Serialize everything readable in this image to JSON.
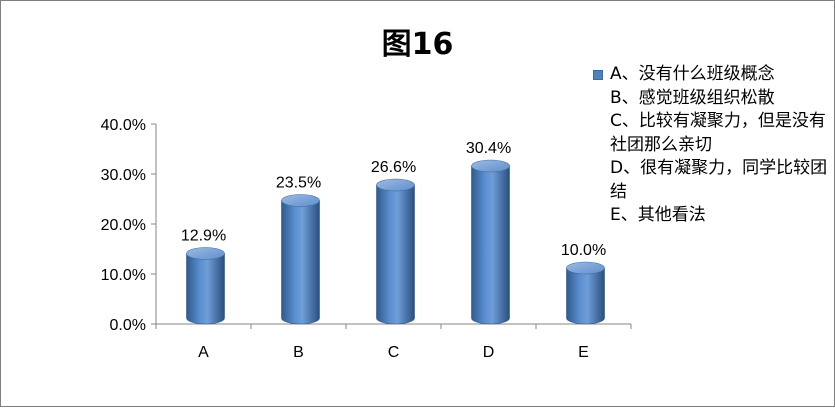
{
  "title": "图16",
  "legend": {
    "series_label": "A、没有什么班级概念\nB、感觉班级组织松散\nC、比较有凝聚力，但是没有社团那么亲切\nD、很有凝聚力，同学比较团结\nE、其他看法"
  },
  "chart_data": {
    "type": "bar",
    "title": "图16",
    "categories": [
      "A",
      "B",
      "C",
      "D",
      "E"
    ],
    "values": [
      12.9,
      23.5,
      26.6,
      30.4,
      10.0
    ],
    "value_labels": [
      "12.9%",
      "23.5%",
      "26.6%",
      "30.4%",
      "10.0%"
    ],
    "y_ticks": [
      "0.0%",
      "10.0%",
      "20.0%",
      "30.0%",
      "40.0%"
    ],
    "ylim": [
      0,
      40
    ],
    "xlabel": "",
    "ylabel": "",
    "legend_position": "right",
    "grid": false,
    "bar_style": "3d-cylinder",
    "colors": {
      "bar": "#4f81bd",
      "bar_dark": "#2f5a8c",
      "bar_light": "#9dbbe3",
      "axis": "#868686"
    }
  }
}
